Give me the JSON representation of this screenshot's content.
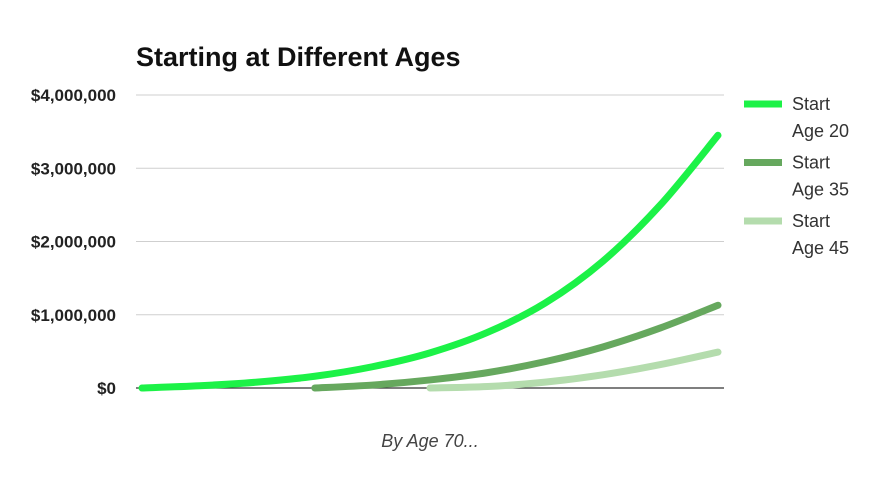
{
  "chart_data": {
    "type": "line",
    "title": "Starting at Different Ages",
    "xlabel": "By Age 70...",
    "ylabel": "",
    "ylim": [
      0,
      4000000
    ],
    "y_ticks": [
      0,
      1000000,
      2000000,
      3000000,
      4000000
    ],
    "y_tick_labels": [
      "$0",
      "$1,000,000",
      "$2,000,000",
      "$3,000,000",
      "$4,000,000"
    ],
    "x_domain": [
      20,
      70
    ],
    "grid": true,
    "legend_position": "right",
    "series": [
      {
        "name": "Start Age 20",
        "name_lines": [
          "Start",
          "Age 20"
        ],
        "color": "#1cf247",
        "x": [
          20,
          25,
          30,
          35,
          40,
          45,
          50,
          55,
          60,
          65,
          70
        ],
        "y": [
          0,
          30000,
          80000,
          160000,
          290000,
          480000,
          760000,
          1160000,
          1730000,
          2500000,
          3450000
        ]
      },
      {
        "name": "Start Age 35",
        "name_lines": [
          "Start",
          "Age 35"
        ],
        "color": "#66a85e",
        "x": [
          35,
          40,
          45,
          50,
          55,
          60,
          65,
          70
        ],
        "y": [
          0,
          40000,
          110000,
          210000,
          360000,
          560000,
          820000,
          1130000
        ]
      },
      {
        "name": "Start Age 45",
        "name_lines": [
          "Start",
          "Age 45"
        ],
        "color": "#b4dcad",
        "x": [
          45,
          50,
          55,
          60,
          65,
          70
        ],
        "y": [
          0,
          20000,
          80000,
          180000,
          320000,
          490000
        ]
      }
    ]
  }
}
